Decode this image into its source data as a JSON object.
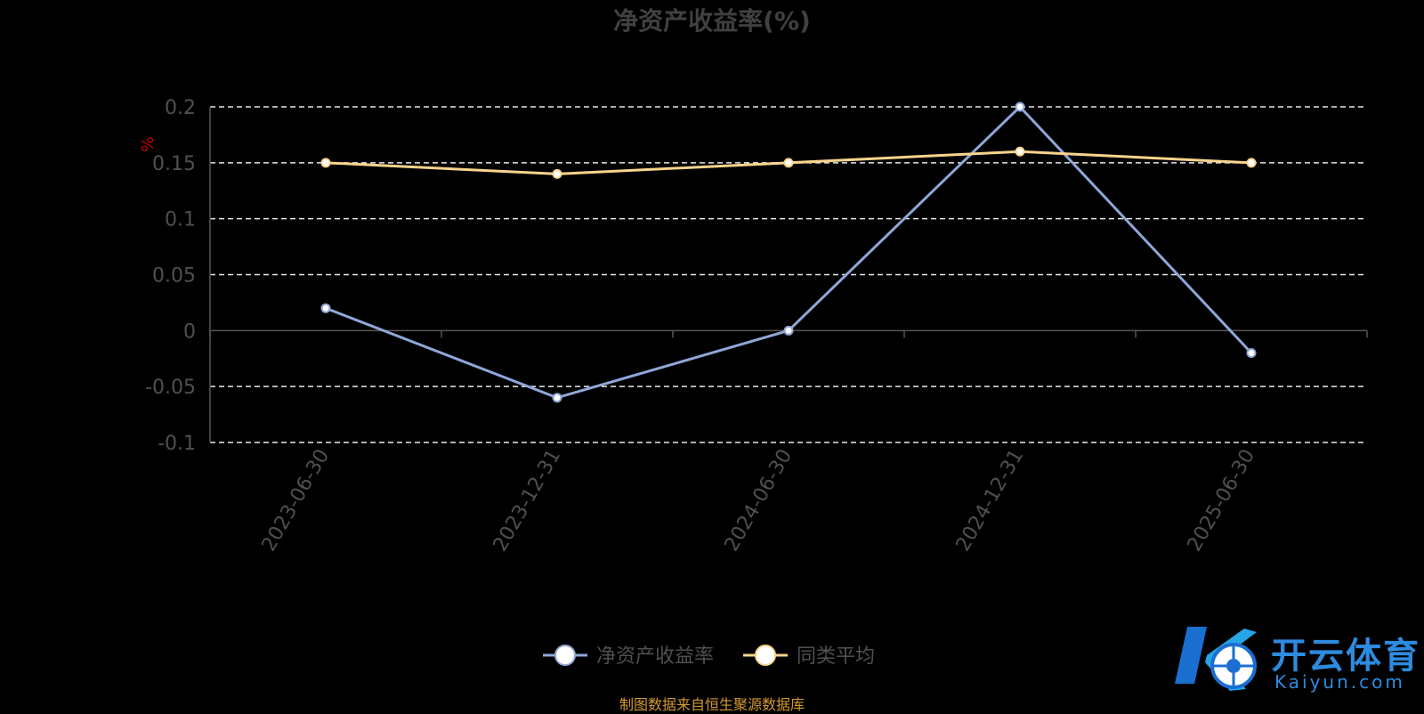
{
  "chart_data": {
    "type": "line",
    "title": "净资产收益率(%)",
    "ylabel": "%",
    "categories": [
      "2023-06-30",
      "2023-12-31",
      "2024-06-30",
      "2024-12-31",
      "2025-06-30"
    ],
    "series": [
      {
        "name": "净资产收益率",
        "values": [
          0.02,
          -0.06,
          0.0,
          0.2,
          -0.02
        ],
        "color": "#8fa7d8"
      },
      {
        "name": "同类平均",
        "values": [
          0.15,
          0.14,
          0.15,
          0.16,
          0.15
        ],
        "color": "#f9d48c"
      }
    ],
    "yticks": [
      "0.2",
      "0.15",
      "0.1",
      "0.05",
      "0",
      "-0.05",
      "-0.1"
    ],
    "ylim": [
      -0.1,
      0.2
    ],
    "grid": true,
    "legend_position": "bottom-center"
  },
  "footer": {
    "source": "制图数据来自恒生聚源数据库"
  },
  "watermark": {
    "name": "开云体育",
    "site": "Kaiyun.com"
  },
  "colors": {
    "background": "#000000",
    "axis": "#555555",
    "grid": "#e8e8e8",
    "tick_text": "#505050",
    "ylabel_text": "#cc0000",
    "title_text": "#404040",
    "source_text": "#d49a2e"
  }
}
